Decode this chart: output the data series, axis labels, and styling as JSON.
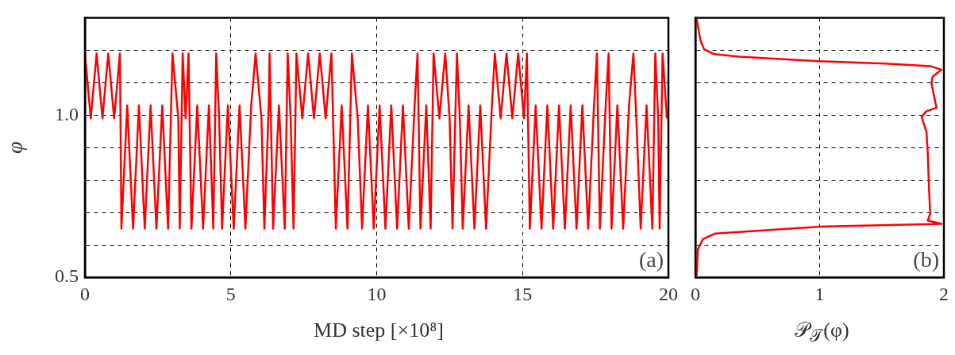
{
  "chart_data": [
    {
      "type": "line",
      "xlabel": "MD step [×10⁸]",
      "ylabel": "φ",
      "annotations": [
        "(a)"
      ],
      "color": "#ff0000",
      "grid": true,
      "x": [
        0,
        0.2,
        0.4,
        0.6,
        0.8,
        1.0,
        1.2,
        1.25,
        1.45,
        1.65,
        1.85,
        2.05,
        2.25,
        2.45,
        2.65,
        2.85,
        3.0,
        3.2,
        3.25,
        3.35,
        3.45,
        3.55,
        3.65,
        3.85,
        4.05,
        4.25,
        4.4,
        4.5,
        4.6,
        4.7,
        4.9,
        5.1,
        5.3,
        5.5,
        5.7,
        5.85,
        6.05,
        6.15,
        6.3,
        6.33,
        6.45,
        6.65,
        6.85,
        6.95,
        7.05,
        7.15,
        7.25,
        7.45,
        7.65,
        7.85,
        8.05,
        8.25,
        8.45,
        8.6,
        8.8,
        9.0,
        9.15,
        9.35,
        9.5,
        9.7,
        9.9,
        10.1,
        10.3,
        10.5,
        10.7,
        10.9,
        11.1,
        11.3,
        11.4,
        11.5,
        11.7,
        11.85,
        11.95,
        12.15,
        12.35,
        12.5,
        12.6,
        12.75,
        12.85,
        12.95,
        13.15,
        13.35,
        13.55,
        13.75,
        13.95,
        14.05,
        14.25,
        14.45,
        14.65,
        14.85,
        15.05,
        15.15,
        15.25,
        15.45,
        15.65,
        15.85,
        16.05,
        16.25,
        16.45,
        16.65,
        16.85,
        17.05,
        17.25,
        17.45,
        17.55,
        17.65,
        17.85,
        17.95,
        18.05,
        18.25,
        18.45,
        18.65,
        18.8,
        18.9,
        19.05,
        19.25,
        19.45,
        19.55,
        19.65,
        19.7,
        19.8,
        19.95
      ],
      "values": [
        1.19,
        0.99,
        1.19,
        0.99,
        1.19,
        0.99,
        1.19,
        0.65,
        1.03,
        0.65,
        1.03,
        0.65,
        1.03,
        0.65,
        1.03,
        0.65,
        1.19,
        0.99,
        0.65,
        1.19,
        0.99,
        1.19,
        0.65,
        1.03,
        0.65,
        1.03,
        0.65,
        1.19,
        0.99,
        0.65,
        1.03,
        0.65,
        1.03,
        0.65,
        1.03,
        1.19,
        0.99,
        0.65,
        1.03,
        1.19,
        0.65,
        1.03,
        0.65,
        1.19,
        0.99,
        0.65,
        1.19,
        0.99,
        1.19,
        0.99,
        1.19,
        0.99,
        1.19,
        0.65,
        1.03,
        0.65,
        1.19,
        0.99,
        0.65,
        1.03,
        0.65,
        1.03,
        0.65,
        1.03,
        0.65,
        1.03,
        0.65,
        1.03,
        1.19,
        0.65,
        1.03,
        0.65,
        1.19,
        0.99,
        1.19,
        0.99,
        0.65,
        1.19,
        0.99,
        0.65,
        1.03,
        0.65,
        1.03,
        0.65,
        1.03,
        1.19,
        0.99,
        1.19,
        0.99,
        1.19,
        0.99,
        1.19,
        0.65,
        1.03,
        0.65,
        1.03,
        0.65,
        1.03,
        0.65,
        1.03,
        0.65,
        1.03,
        0.65,
        1.03,
        1.19,
        0.65,
        1.03,
        1.19,
        0.65,
        1.03,
        0.65,
        1.03,
        1.19,
        0.99,
        0.65,
        1.03,
        0.65,
        1.19,
        0.99,
        0.65,
        1.19,
        0.99
      ],
      "xlim": [
        0,
        20
      ],
      "xticks": [
        0,
        5,
        10,
        15,
        20
      ],
      "ylim": [
        0.5,
        1.3
      ],
      "yticks": [
        0.5,
        {
          "value": 0.6,
          "label": null
        },
        {
          "value": 0.7,
          "label": null
        },
        {
          "value": 0.8,
          "label": null
        },
        {
          "value": 0.9,
          "label": null
        },
        {
          "value": 1,
          "label": "1.0"
        },
        {
          "value": 1.1,
          "label": null
        },
        {
          "value": 1.2,
          "label": null
        }
      ]
    },
    {
      "type": "line",
      "xlabel": "𝒫$_{𝒯}$(φ)",
      "annotations": [
        "(b)"
      ],
      "color": "#ff0000",
      "grid": true,
      "tick_labels": "x",
      "x": [
        0.01,
        0.04,
        0.07,
        0.15,
        0.35,
        1.0,
        1.53,
        1.89,
        1.98,
        1.91,
        1.9,
        1.94,
        1.86,
        1.82,
        1.86,
        1.87,
        1.88,
        1.89,
        1.87,
        1.98,
        1.0,
        0.16,
        0.06,
        0.02,
        0.01
      ],
      "values": [
        1.297,
        1.231,
        1.203,
        1.188,
        1.18,
        1.166,
        1.159,
        1.151,
        1.14,
        1.119,
        1.098,
        1.023,
        1.012,
        0.995,
        0.948,
        0.885,
        0.776,
        0.696,
        0.675,
        0.665,
        0.656,
        0.635,
        0.618,
        0.587,
        0.505
      ],
      "xlim": [
        0,
        2
      ],
      "xticks": [
        0,
        1,
        2
      ],
      "ylim": [
        0.5,
        1.3
      ],
      "yticks": [
        {
          "value": 0.5,
          "label": null
        },
        {
          "value": 0.6,
          "label": null
        },
        {
          "value": 0.7,
          "label": null
        },
        {
          "value": 0.8,
          "label": null
        },
        {
          "value": 0.9,
          "label": null
        },
        {
          "value": 1.0,
          "label": null
        },
        {
          "value": 1.1,
          "label": null
        },
        {
          "value": 1.2,
          "label": null
        }
      ]
    }
  ]
}
